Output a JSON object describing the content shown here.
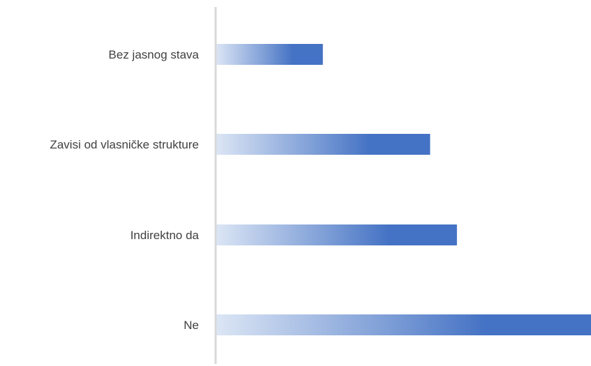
{
  "chart_data": {
    "type": "bar",
    "orientation": "horizontal",
    "categories": [
      "Bez jasnog stava",
      "Zavisi od vlasničke strukture",
      "Indirektno da",
      "Ne"
    ],
    "values": [
      4,
      8,
      9,
      14
    ],
    "xlim": [
      0,
      14
    ],
    "grid": false,
    "legend": "none",
    "bar_color": "#4472c4",
    "bar_gradient_start": "#dce6f5",
    "axis_color": "#d9d9d9",
    "label_color": "#404040"
  }
}
